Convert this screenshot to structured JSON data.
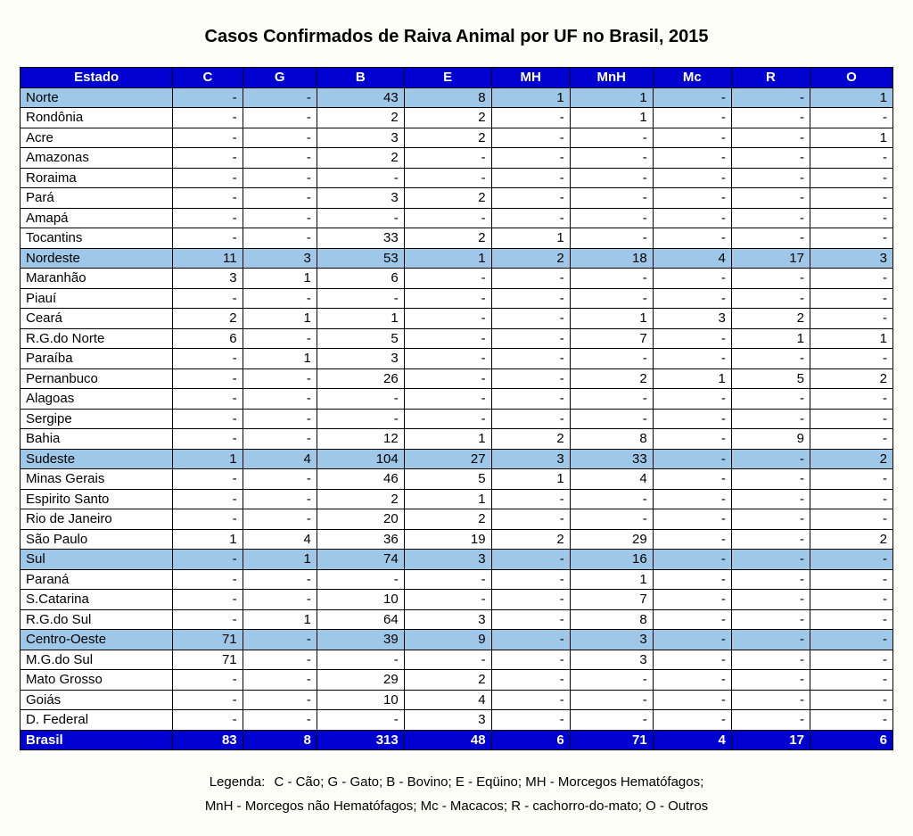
{
  "title": "Casos Confirmados de Raiva Animal por UF no Brasil, 2015",
  "columns": [
    "Estado",
    "C",
    "G",
    "B",
    "E",
    "MH",
    "MnH",
    "Mc",
    "R",
    "O"
  ],
  "col_widths_pct": [
    17.5,
    8.0,
    8.5,
    10.0,
    10.0,
    9.0,
    9.5,
    9.0,
    9.0,
    9.5
  ],
  "colors": {
    "header_bg": "#0000d0",
    "header_fg": "#ffffff",
    "region_bg": "#9ec7e8",
    "region_fg": "#000000",
    "total_bg": "#0000d0",
    "total_fg": "#ffffff",
    "row_bg": "#ffffff",
    "row_fg": "#000000"
  },
  "empty": "-",
  "rows": [
    {
      "type": "region",
      "label": "Norte",
      "v": [
        "-",
        "-",
        "43",
        "8",
        "1",
        "1",
        "-",
        "-",
        "1"
      ]
    },
    {
      "type": "state",
      "label": "Rondônia",
      "v": [
        "-",
        "-",
        "2",
        "2",
        "-",
        "1",
        "-",
        "-",
        "-"
      ]
    },
    {
      "type": "state",
      "label": "Acre",
      "v": [
        "-",
        "-",
        "3",
        "2",
        "-",
        "-",
        "-",
        "-",
        "1"
      ]
    },
    {
      "type": "state",
      "label": "Amazonas",
      "v": [
        "-",
        "-",
        "2",
        "-",
        "-",
        "-",
        "-",
        "-",
        "-"
      ]
    },
    {
      "type": "state",
      "label": "Roraima",
      "v": [
        "-",
        "-",
        "-",
        "-",
        "-",
        "-",
        "-",
        "-",
        "-"
      ]
    },
    {
      "type": "state",
      "label": "Pará",
      "v": [
        "-",
        "-",
        "3",
        "2",
        "-",
        "-",
        "-",
        "-",
        "-"
      ]
    },
    {
      "type": "state",
      "label": "Amapá",
      "v": [
        "-",
        "-",
        "-",
        "-",
        "-",
        "-",
        "-",
        "-",
        "-"
      ]
    },
    {
      "type": "state",
      "label": "Tocantins",
      "v": [
        "-",
        "-",
        "33",
        "2",
        "1",
        "-",
        "-",
        "-",
        "-"
      ]
    },
    {
      "type": "region",
      "label": "Nordeste",
      "v": [
        "11",
        "3",
        "53",
        "1",
        "2",
        "18",
        "4",
        "17",
        "3"
      ]
    },
    {
      "type": "state",
      "label": "Maranhão",
      "v": [
        "3",
        "1",
        "6",
        "-",
        "-",
        "-",
        "-",
        "-",
        "-"
      ]
    },
    {
      "type": "state",
      "label": "Piauí",
      "v": [
        "-",
        "-",
        "-",
        "-",
        "-",
        "-",
        "-",
        "-",
        "-"
      ]
    },
    {
      "type": "state",
      "label": "Ceará",
      "v": [
        "2",
        "1",
        "1",
        "-",
        "-",
        "1",
        "3",
        "2",
        "-"
      ]
    },
    {
      "type": "state",
      "label": "R.G.do Norte",
      "v": [
        "6",
        "-",
        "5",
        "-",
        "-",
        "7",
        "-",
        "1",
        "1"
      ]
    },
    {
      "type": "state",
      "label": "Paraíba",
      "v": [
        "-",
        "1",
        "3",
        "-",
        "-",
        "-",
        "-",
        "-",
        "-"
      ]
    },
    {
      "type": "state",
      "label": "Pernanbuco",
      "v": [
        "-",
        "-",
        "26",
        "-",
        "-",
        "2",
        "1",
        "5",
        "2"
      ]
    },
    {
      "type": "state",
      "label": "Alagoas",
      "v": [
        "-",
        "-",
        "-",
        "-",
        "-",
        "-",
        "-",
        "-",
        "-"
      ]
    },
    {
      "type": "state",
      "label": "Sergipe",
      "v": [
        "-",
        "-",
        "-",
        "-",
        "-",
        "-",
        "-",
        "-",
        "-"
      ]
    },
    {
      "type": "state",
      "label": "Bahia",
      "v": [
        "-",
        "-",
        "12",
        "1",
        "2",
        "8",
        "-",
        "9",
        "-"
      ]
    },
    {
      "type": "region",
      "label": "Sudeste",
      "v": [
        "1",
        "4",
        "104",
        "27",
        "3",
        "33",
        "-",
        "-",
        "2"
      ]
    },
    {
      "type": "state",
      "label": "Minas Gerais",
      "v": [
        "-",
        "-",
        "46",
        "5",
        "1",
        "4",
        "-",
        "-",
        "-"
      ]
    },
    {
      "type": "state",
      "label": "Espirito Santo",
      "v": [
        "-",
        "-",
        "2",
        "1",
        "-",
        "-",
        "-",
        "-",
        "-"
      ]
    },
    {
      "type": "state",
      "label": "Rio de Janeiro",
      "v": [
        "-",
        "-",
        "20",
        "2",
        "-",
        "-",
        "-",
        "-",
        "-"
      ]
    },
    {
      "type": "state",
      "label": "São Paulo",
      "v": [
        "1",
        "4",
        "36",
        "19",
        "2",
        "29",
        "-",
        "-",
        "2"
      ]
    },
    {
      "type": "region",
      "label": "Sul",
      "v": [
        "-",
        "1",
        "74",
        "3",
        "-",
        "16",
        "-",
        "-",
        "-"
      ]
    },
    {
      "type": "state",
      "label": "Paraná",
      "v": [
        "-",
        "-",
        "-",
        "-",
        "-",
        "1",
        "-",
        "-",
        "-"
      ]
    },
    {
      "type": "state",
      "label": "S.Catarina",
      "v": [
        "-",
        "-",
        "10",
        "-",
        "-",
        "7",
        "-",
        "-",
        "-"
      ]
    },
    {
      "type": "state",
      "label": "R.G.do Sul",
      "v": [
        "-",
        "1",
        "64",
        "3",
        "-",
        "8",
        "-",
        "-",
        "-"
      ]
    },
    {
      "type": "region",
      "label": "Centro-Oeste",
      "v": [
        "71",
        "-",
        "39",
        "9",
        "-",
        "3",
        "-",
        "-",
        "-"
      ]
    },
    {
      "type": "state",
      "label": "M.G.do Sul",
      "v": [
        "71",
        "-",
        "-",
        "-",
        "-",
        "3",
        "-",
        "-",
        "-"
      ]
    },
    {
      "type": "state",
      "label": "Mato Grosso",
      "v": [
        "-",
        "-",
        "29",
        "2",
        "-",
        "-",
        "-",
        "-",
        "-"
      ]
    },
    {
      "type": "state",
      "label": "Goiás",
      "v": [
        "-",
        "-",
        "10",
        "4",
        "-",
        "-",
        "-",
        "-",
        "-"
      ]
    },
    {
      "type": "state",
      "label": "D. Federal",
      "v": [
        "-",
        "-",
        "-",
        "3",
        "-",
        "-",
        "-",
        "-",
        "-"
      ]
    },
    {
      "type": "total",
      "label": "Brasil",
      "v": [
        "83",
        "8",
        "313",
        "48",
        "6",
        "71",
        "4",
        "17",
        "6"
      ]
    }
  ],
  "legend": {
    "lead": "Legenda:",
    "line1": "C - Cão; G - Gato; B - Bovino; E - Eqüino; MH - Morcegos Hematófagos;",
    "line2": "MnH - Morcegos não Hematófagos; Mc - Macacos; R - cachorro-do-mato; O - Outros"
  }
}
